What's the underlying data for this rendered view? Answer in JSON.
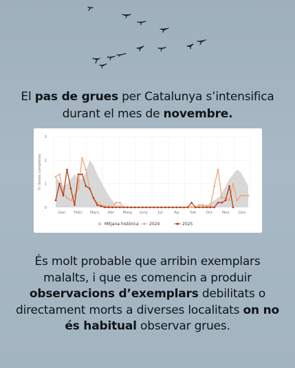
{
  "headline": {
    "p1": "El ",
    "b1": "pas de grues",
    "p2": " per Catalunya s’intensifica durant el mes de ",
    "b2": "novembre."
  },
  "body": {
    "p1": "És molt probable que arribin exemplars malalts, i que es comencin a produir ",
    "b1": "observacions d’exemplars",
    "p2": " debilitats o directament morts a diverses localitats ",
    "b2": "on no és habitual",
    "p3": " observar grues."
  },
  "chart_data": {
    "type": "line",
    "ylabel": "% llistes completes",
    "ylim": [
      0,
      3
    ],
    "yticks": [
      "0",
      "1",
      "2",
      "3"
    ],
    "months": [
      "Gen",
      "Febr",
      "Març",
      "Abr",
      "Maig",
      "Juny",
      "Jul",
      "Ag",
      "Set",
      "Oct",
      "Nov",
      "Des"
    ],
    "x_weeks": [
      1,
      2,
      3,
      4,
      5,
      6,
      7,
      8,
      9,
      10,
      11,
      12,
      13,
      14,
      15,
      16,
      17,
      18,
      19,
      20,
      21,
      22,
      23,
      24,
      25,
      26,
      27,
      28,
      29,
      30,
      31,
      32,
      33,
      34,
      35,
      36,
      37,
      38,
      39,
      40,
      41,
      42,
      43,
      44,
      45,
      46,
      47,
      48,
      49,
      50,
      51,
      52
    ],
    "series": [
      {
        "name": "Mitjana històrica",
        "style": "area",
        "color": "#d4d4d4",
        "values": [
          1.3,
          1.1,
          0.9,
          1.0,
          1.2,
          1.4,
          1.2,
          1.2,
          1.5,
          2.0,
          1.8,
          1.4,
          1.1,
          0.8,
          0.5,
          0.3,
          0.1,
          0.1,
          0.05,
          0.05,
          0.03,
          0.02,
          0.02,
          0.01,
          0.01,
          0,
          0,
          0,
          0,
          0,
          0,
          0,
          0,
          0,
          0,
          0.05,
          0.05,
          0.05,
          0.05,
          0.1,
          0.1,
          0.2,
          0.3,
          0.4,
          0.6,
          0.9,
          1.2,
          1.4,
          1.6,
          1.5,
          1.2,
          0.9
        ]
      },
      {
        "name": "2024",
        "style": "line",
        "color": "#f0a574",
        "values": [
          1.3,
          1.4,
          0.6,
          0.4,
          0.3,
          0.5,
          0.8,
          2.1,
          1.6,
          0.8,
          0.4,
          0.2,
          0.1,
          0.05,
          0.05,
          0,
          0.2,
          0.2,
          0,
          0,
          0,
          0,
          0,
          0,
          0,
          0,
          0,
          0,
          0,
          0,
          0,
          0,
          0,
          0,
          0,
          0,
          0,
          0,
          0.1,
          0.1,
          0.05,
          0.05,
          0.9,
          1.6,
          0.4,
          0.4,
          0.3,
          1.0,
          0.3,
          0.5,
          0.5,
          0.5
        ]
      },
      {
        "name": "2025",
        "style": "line",
        "color": "#b33a16",
        "values": [
          0.3,
          1.0,
          0.5,
          1.6,
          0.8,
          0.1,
          1.4,
          1.4,
          0.9,
          0.8,
          0.4,
          0.1,
          0.05,
          0,
          0,
          0,
          0,
          0,
          0,
          0,
          0,
          0,
          0,
          0,
          0,
          0,
          0,
          0,
          0,
          0,
          0,
          0,
          0,
          0,
          0,
          0,
          0.2,
          0,
          0,
          0,
          0,
          0,
          0,
          0.2,
          0.2,
          0.3,
          0.9,
          0,
          null,
          null,
          null,
          null
        ]
      }
    ]
  }
}
